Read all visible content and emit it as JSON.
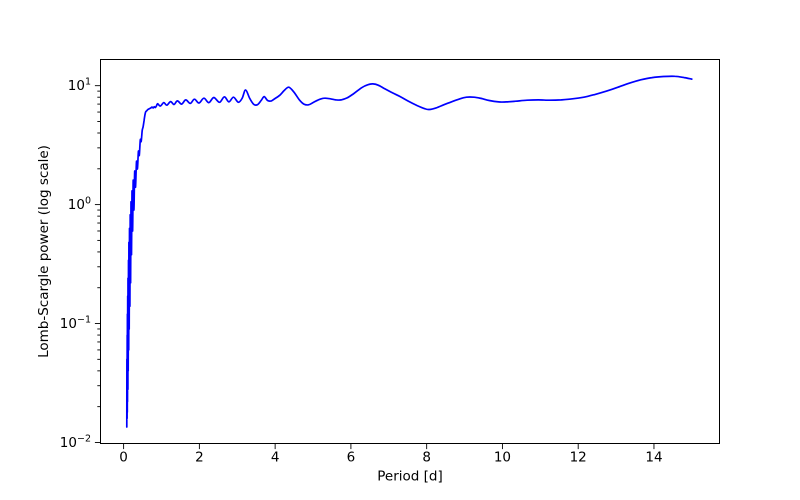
{
  "figure": {
    "background_color": "#ffffff",
    "spine_color": "#000000",
    "tick_label_color": "#000000"
  },
  "chart_data": {
    "type": "line",
    "xlabel": "Period [d]",
    "ylabel": "Lomb-Scargle power (log scale)",
    "x_scale": "linear",
    "y_scale": "log",
    "xlim": [
      -0.61,
      15.73
    ],
    "ylim": [
      0.0098,
      16.6
    ],
    "grid": false,
    "legend": "none",
    "line_color": "#0000ff",
    "x_axis_ticks": [
      {
        "label": "0",
        "value": 0
      },
      {
        "label": "2",
        "value": 2
      },
      {
        "label": "4",
        "value": 4
      },
      {
        "label": "6",
        "value": 6
      },
      {
        "label": "8",
        "value": 8
      },
      {
        "label": "10",
        "value": 10
      },
      {
        "label": "12",
        "value": 12
      },
      {
        "label": "14",
        "value": 14
      }
    ],
    "y_axis_ticks": [
      {
        "base": "10",
        "exp": "1",
        "value": 10
      },
      {
        "base": "10",
        "exp": "0",
        "value": 1
      },
      {
        "base": "10",
        "exp": "−1",
        "value": 0.1
      },
      {
        "base": "10",
        "exp": "−2",
        "value": 0.01
      }
    ],
    "series_points": [
      [
        0.085,
        0.0135
      ],
      [
        0.088,
        0.05
      ],
      [
        0.091,
        0.016
      ],
      [
        0.094,
        0.08
      ],
      [
        0.097,
        0.018
      ],
      [
        0.1,
        0.12
      ],
      [
        0.104,
        0.022
      ],
      [
        0.108,
        0.17
      ],
      [
        0.112,
        0.028
      ],
      [
        0.117,
        0.24
      ],
      [
        0.122,
        0.04
      ],
      [
        0.128,
        0.34
      ],
      [
        0.134,
        0.06
      ],
      [
        0.141,
        0.48
      ],
      [
        0.148,
        0.09
      ],
      [
        0.156,
        0.63
      ],
      [
        0.165,
        0.14
      ],
      [
        0.175,
        0.82
      ],
      [
        0.185,
        0.22
      ],
      [
        0.196,
        1.05
      ],
      [
        0.208,
        0.38
      ],
      [
        0.222,
        1.3
      ],
      [
        0.237,
        0.6
      ],
      [
        0.254,
        1.6
      ],
      [
        0.272,
        0.9
      ],
      [
        0.292,
        1.9
      ],
      [
        0.315,
        1.4
      ],
      [
        0.34,
        2.3
      ],
      [
        0.365,
        2.0
      ],
      [
        0.39,
        2.8
      ],
      [
        0.415,
        2.6
      ],
      [
        0.44,
        3.5
      ],
      [
        0.465,
        3.4
      ],
      [
        0.49,
        4.2
      ],
      [
        0.515,
        4.5
      ],
      [
        0.54,
        5.1
      ],
      [
        0.56,
        5.6
      ],
      [
        0.58,
        6.0
      ],
      [
        0.61,
        6.15
      ],
      [
        0.64,
        6.3
      ],
      [
        0.68,
        6.4
      ],
      [
        0.72,
        6.5
      ],
      [
        0.75,
        6.6
      ],
      [
        0.78,
        6.5
      ],
      [
        0.81,
        6.65
      ],
      [
        0.84,
        6.55
      ],
      [
        0.87,
        6.8
      ],
      [
        0.9,
        7.05
      ],
      [
        0.97,
        6.75
      ],
      [
        1.06,
        7.2
      ],
      [
        1.14,
        6.85
      ],
      [
        1.24,
        7.35
      ],
      [
        1.33,
        6.95
      ],
      [
        1.42,
        7.45
      ],
      [
        1.53,
        7.0
      ],
      [
        1.64,
        7.6
      ],
      [
        1.76,
        7.1
      ],
      [
        1.87,
        7.7
      ],
      [
        1.99,
        7.15
      ],
      [
        2.12,
        7.85
      ],
      [
        2.25,
        7.2
      ],
      [
        2.38,
        7.95
      ],
      [
        2.53,
        7.25
      ],
      [
        2.66,
        8.05
      ],
      [
        2.78,
        7.3
      ],
      [
        2.9,
        8.0
      ],
      [
        3.03,
        7.25
      ],
      [
        3.13,
        7.85
      ],
      [
        3.22,
        9.2
      ],
      [
        3.33,
        7.8
      ],
      [
        3.43,
        7.0
      ],
      [
        3.53,
        6.9
      ],
      [
        3.63,
        7.5
      ],
      [
        3.71,
        8.1
      ],
      [
        3.8,
        7.5
      ],
      [
        3.9,
        7.45
      ],
      [
        4.0,
        7.8
      ],
      [
        4.12,
        8.3
      ],
      [
        4.24,
        9.1
      ],
      [
        4.36,
        9.7
      ],
      [
        4.5,
        8.8
      ],
      [
        4.64,
        7.6
      ],
      [
        4.76,
        7.0
      ],
      [
        4.88,
        6.9
      ],
      [
        5.0,
        7.2
      ],
      [
        5.14,
        7.6
      ],
      [
        5.3,
        7.85
      ],
      [
        5.46,
        7.75
      ],
      [
        5.6,
        7.6
      ],
      [
        5.74,
        7.6
      ],
      [
        5.9,
        7.9
      ],
      [
        6.08,
        8.6
      ],
      [
        6.28,
        9.6
      ],
      [
        6.45,
        10.2
      ],
      [
        6.58,
        10.35
      ],
      [
        6.72,
        10.1
      ],
      [
        6.9,
        9.4
      ],
      [
        7.1,
        8.7
      ],
      [
        7.3,
        8.1
      ],
      [
        7.52,
        7.4
      ],
      [
        7.75,
        6.8
      ],
      [
        7.95,
        6.4
      ],
      [
        8.07,
        6.3
      ],
      [
        8.25,
        6.5
      ],
      [
        8.45,
        6.9
      ],
      [
        8.65,
        7.3
      ],
      [
        8.85,
        7.7
      ],
      [
        9.05,
        8.0
      ],
      [
        9.25,
        8.0
      ],
      [
        9.45,
        7.8
      ],
      [
        9.65,
        7.5
      ],
      [
        9.9,
        7.3
      ],
      [
        10.1,
        7.3
      ],
      [
        10.35,
        7.4
      ],
      [
        10.65,
        7.55
      ],
      [
        10.95,
        7.6
      ],
      [
        11.25,
        7.55
      ],
      [
        11.55,
        7.6
      ],
      [
        11.85,
        7.75
      ],
      [
        12.15,
        8.0
      ],
      [
        12.45,
        8.45
      ],
      [
        12.75,
        9.0
      ],
      [
        13.05,
        9.7
      ],
      [
        13.35,
        10.5
      ],
      [
        13.65,
        11.2
      ],
      [
        13.95,
        11.7
      ],
      [
        14.25,
        11.95
      ],
      [
        14.55,
        12.0
      ],
      [
        14.8,
        11.7
      ],
      [
        15.0,
        11.35
      ]
    ]
  }
}
